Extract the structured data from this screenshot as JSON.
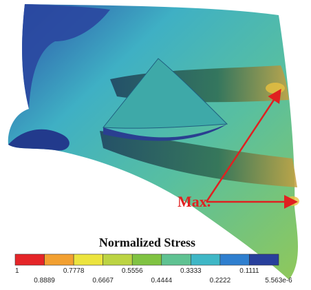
{
  "figure": {
    "annotation": "Max.",
    "colorbar": {
      "title": "Normalized Stress",
      "colors": [
        "#e52528",
        "#f2a031",
        "#ece43e",
        "#bcd443",
        "#80c342",
        "#5fc292",
        "#3fb7c6",
        "#2f7fcf",
        "#283f9c"
      ],
      "labels": [
        "1",
        "0.8889",
        "0.7778",
        "0.6667",
        "0.5556",
        "0.4444",
        "0.3333",
        "0.2222",
        "0.1111",
        "5.563e-6"
      ]
    }
  }
}
